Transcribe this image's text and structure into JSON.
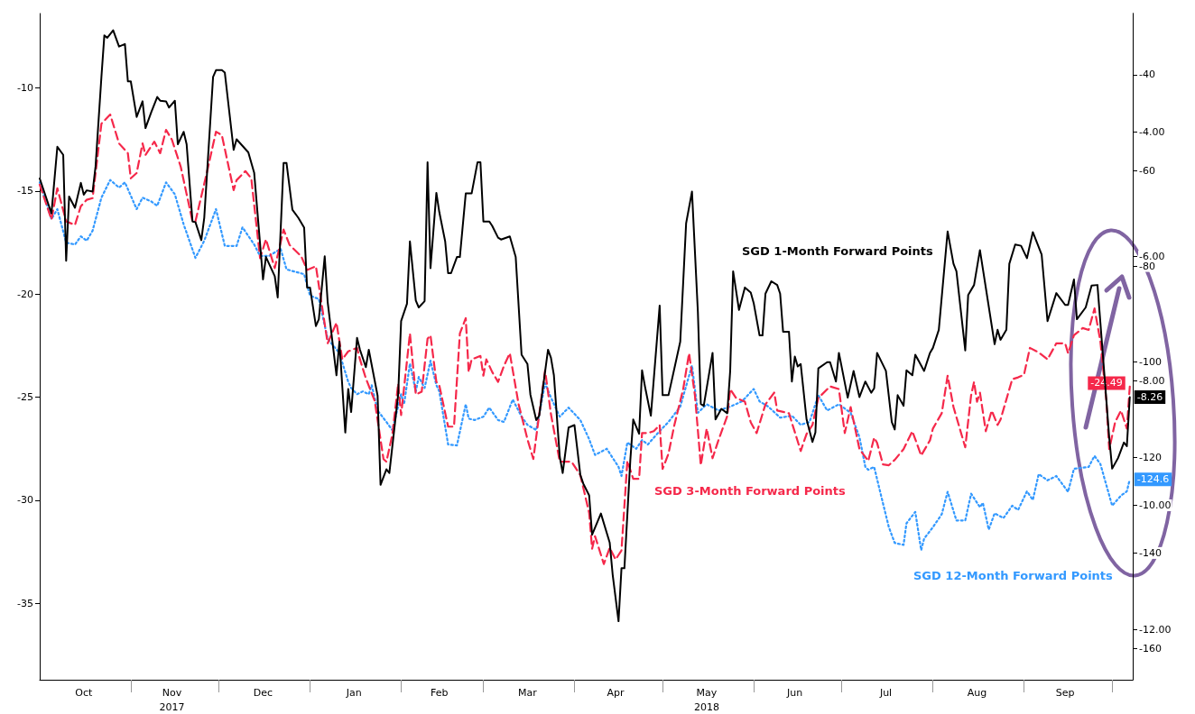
{
  "chart_data": {
    "type": "line",
    "xlim": [
      "2017-10-01",
      "2018-10-08"
    ],
    "xticks": [
      {
        "value": "2017-10-16",
        "label": "Oct"
      },
      {
        "value": "2017-11-01",
        "label": null
      },
      {
        "value": "2017-11-15",
        "label": "Nov\n2017"
      },
      {
        "value": "2017-12-01",
        "label": null
      },
      {
        "value": "2017-12-16",
        "label": "Dec"
      },
      {
        "value": "2018-01-01",
        "label": null
      },
      {
        "value": "2018-01-16",
        "label": "Jan"
      },
      {
        "value": "2018-02-01",
        "label": null
      },
      {
        "value": "2018-02-14",
        "label": "Feb"
      },
      {
        "value": "2018-03-01",
        "label": null
      },
      {
        "value": "2018-03-16",
        "label": "Mar"
      },
      {
        "value": "2018-04-01",
        "label": null
      },
      {
        "value": "2018-04-15",
        "label": "Apr"
      },
      {
        "value": "2018-05-01",
        "label": null
      },
      {
        "value": "2018-05-16",
        "label": "May\n2018"
      },
      {
        "value": "2018-06-01",
        "label": null
      },
      {
        "value": "2018-06-15",
        "label": "Jun"
      },
      {
        "value": "2018-07-01",
        "label": null
      },
      {
        "value": "2018-07-16",
        "label": "Jul"
      },
      {
        "value": "2018-08-01",
        "label": null
      },
      {
        "value": "2018-08-16",
        "label": "Aug"
      },
      {
        "value": "2018-09-01",
        "label": null
      },
      {
        "value": "2018-09-15",
        "label": "Sep"
      },
      {
        "value": "2018-10-01",
        "label": null
      }
    ],
    "ylim": [
      -38.7,
      -6.4
    ],
    "yticks": [
      -10,
      -15,
      -20,
      -25,
      -30,
      -35
    ],
    "y2lim": [
      -12.8,
      -2.1
    ],
    "y2ticks": [
      {
        "value": -4,
        "label": "-4.00"
      },
      {
        "value": -6,
        "label": "-6.00"
      },
      {
        "value": -8,
        "label": "-8.00"
      },
      {
        "value": -10,
        "label": "-10.00"
      },
      {
        "value": -12,
        "label": "-12.00"
      }
    ],
    "y3lim": [
      -166.5,
      -27.2
    ],
    "y3ticks": [
      -40,
      -60,
      -80,
      -100,
      -120,
      -140,
      -160
    ],
    "grid": false,
    "legend": false,
    "marker": "none",
    "series": [
      {
        "name": "SGD 1-Month Forward Points",
        "color": "#000000",
        "axis": "y2",
        "line_style": "solid",
        "x": [
          "2017-10-01",
          "2017-10-05",
          "2017-10-07",
          "2017-10-09",
          "2017-10-10",
          "2017-10-11",
          "2017-10-13",
          "2017-10-15",
          "2017-10-16",
          "2017-10-17",
          "2017-10-19",
          "2017-10-20",
          "2017-10-22",
          "2017-10-23",
          "2017-10-24",
          "2017-10-26",
          "2017-10-28",
          "2017-10-30",
          "2017-10-31",
          "2017-11-01",
          "2017-11-03",
          "2017-11-05",
          "2017-11-06",
          "2017-11-08",
          "2017-11-10",
          "2017-11-11",
          "2017-11-13",
          "2017-11-14",
          "2017-11-16",
          "2017-11-17",
          "2017-11-19",
          "2017-11-20",
          "2017-11-22",
          "2017-11-23",
          "2017-11-25",
          "2017-11-26",
          "2017-11-29",
          "2017-11-30",
          "2017-12-02",
          "2017-12-03",
          "2017-12-06",
          "2017-12-07",
          "2017-12-11",
          "2017-12-13",
          "2017-12-16",
          "2017-12-17",
          "2017-12-20",
          "2017-12-21",
          "2017-12-23",
          "2017-12-24",
          "2017-12-26",
          "2017-12-28",
          "2017-12-30",
          "2017-12-31",
          "2018-01-01",
          "2018-01-03",
          "2018-01-04",
          "2018-01-06",
          "2018-01-07",
          "2018-01-10",
          "2018-01-11",
          "2018-01-13",
          "2018-01-14",
          "2018-01-15",
          "2018-01-17",
          "2018-01-18",
          "2018-01-20",
          "2018-01-21",
          "2018-01-24",
          "2018-01-25",
          "2018-01-27",
          "2018-01-28",
          "2018-01-31",
          "2018-02-01",
          "2018-02-03",
          "2018-02-04",
          "2018-02-06",
          "2018-02-07",
          "2018-02-09",
          "2018-02-10",
          "2018-02-11",
          "2018-02-13",
          "2018-02-14",
          "2018-02-16",
          "2018-02-17",
          "2018-02-18",
          "2018-02-20",
          "2018-02-21",
          "2018-02-23",
          "2018-02-25",
          "2018-02-27",
          "2018-02-28",
          "2018-03-01",
          "2018-03-03",
          "2018-03-04",
          "2018-03-06",
          "2018-03-07",
          "2018-03-10",
          "2018-03-12",
          "2018-03-14",
          "2018-03-16",
          "2018-03-17",
          "2018-03-19",
          "2018-03-20",
          "2018-03-23",
          "2018-03-24",
          "2018-03-25",
          "2018-03-27",
          "2018-03-28",
          "2018-03-30",
          "2018-04-01",
          "2018-04-03",
          "2018-04-04",
          "2018-04-06",
          "2018-04-07",
          "2018-04-10",
          "2018-04-13",
          "2018-04-14",
          "2018-04-16",
          "2018-04-17",
          "2018-04-18",
          "2018-04-20",
          "2018-04-21",
          "2018-04-23",
          "2018-04-24",
          "2018-04-25",
          "2018-04-27",
          "2018-04-30",
          "2018-05-01",
          "2018-05-03",
          "2018-05-05",
          "2018-05-07",
          "2018-05-09",
          "2018-05-11",
          "2018-05-13",
          "2018-05-14",
          "2018-05-15",
          "2018-05-18",
          "2018-05-19",
          "2018-05-21",
          "2018-05-23",
          "2018-05-24",
          "2018-05-25",
          "2018-05-27",
          "2018-05-29",
          "2018-05-31",
          "2018-06-01",
          "2018-06-03",
          "2018-06-04",
          "2018-06-05",
          "2018-06-07",
          "2018-06-09",
          "2018-06-10",
          "2018-06-11",
          "2018-06-13",
          "2018-06-14",
          "2018-06-15",
          "2018-06-16",
          "2018-06-17",
          "2018-06-19",
          "2018-06-21",
          "2018-06-22",
          "2018-06-23",
          "2018-06-26",
          "2018-06-27",
          "2018-06-29",
          "2018-06-30",
          "2018-07-03",
          "2018-07-05",
          "2018-07-07",
          "2018-07-09",
          "2018-07-11",
          "2018-07-12",
          "2018-07-13",
          "2018-07-16",
          "2018-07-18",
          "2018-07-19",
          "2018-07-20",
          "2018-07-22",
          "2018-07-23",
          "2018-07-25",
          "2018-07-26",
          "2018-07-29",
          "2018-07-31",
          "2018-08-01",
          "2018-08-03",
          "2018-08-06",
          "2018-08-08",
          "2018-08-09",
          "2018-08-12",
          "2018-08-13",
          "2018-08-15",
          "2018-08-17",
          "2018-08-22",
          "2018-08-23",
          "2018-08-24",
          "2018-08-26",
          "2018-08-27",
          "2018-08-29",
          "2018-08-31",
          "2018-09-02",
          "2018-09-04",
          "2018-09-07",
          "2018-09-09",
          "2018-09-12",
          "2018-09-15",
          "2018-09-16",
          "2018-09-18",
          "2018-09-19",
          "2018-09-22",
          "2018-09-24",
          "2018-09-26",
          "2018-09-28",
          "2018-09-30",
          "2018-10-01",
          "2018-10-03",
          "2018-10-05",
          "2018-10-06",
          "2018-10-07"
        ],
        "values": [
          -4.75,
          -5.31,
          -4.24,
          -4.37,
          -6.07,
          -5.04,
          -5.22,
          -4.82,
          -5.01,
          -4.94,
          -4.96,
          -4.56,
          -3.12,
          -2.45,
          -2.49,
          -2.37,
          -2.63,
          -2.59,
          -3.19,
          -3.19,
          -3.76,
          -3.51,
          -3.94,
          -3.68,
          -3.44,
          -3.5,
          -3.51,
          -3.61,
          -3.5,
          -4.2,
          -4.0,
          -4.2,
          -5.44,
          -5.45,
          -5.74,
          -5.38,
          -3.12,
          -3.01,
          -3.01,
          -3.05,
          -4.29,
          -4.12,
          -4.33,
          -4.66,
          -6.37,
          -6.01,
          -6.32,
          -6.66,
          -4.5,
          -4.5,
          -5.25,
          -5.38,
          -5.54,
          -6.5,
          -6.5,
          -7.12,
          -7.01,
          -6.0,
          -6.73,
          -7.91,
          -7.37,
          -8.83,
          -8.13,
          -8.5,
          -7.31,
          -7.5,
          -7.78,
          -7.5,
          -8.24,
          -9.67,
          -9.42,
          -9.48,
          -8.22,
          -7.04,
          -6.76,
          -5.76,
          -6.71,
          -6.82,
          -6.72,
          -4.49,
          -6.19,
          -4.98,
          -5.29,
          -5.76,
          -6.27,
          -6.27,
          -6.01,
          -6.01,
          -4.99,
          -4.99,
          -4.49,
          -4.49,
          -5.44,
          -5.44,
          -5.51,
          -5.7,
          -5.73,
          -5.68,
          -6.01,
          -7.58,
          -7.73,
          -8.22,
          -8.63,
          -8.56,
          -7.5,
          -7.63,
          -7.91,
          -9.22,
          -9.48,
          -8.75,
          -8.71,
          -9.51,
          -9.65,
          -9.84,
          -10.47,
          -10.13,
          -10.6,
          -11.11,
          -11.86,
          -11.01,
          -11.01,
          -9.28,
          -8.62,
          -8.85,
          -7.83,
          -8.09,
          -8.56,
          -6.79,
          -8.23,
          -8.23,
          -7.8,
          -7.37,
          -5.47,
          -4.96,
          -6.89,
          -8.37,
          -8.4,
          -7.55,
          -8.62,
          -8.45,
          -8.52,
          -7.84,
          -6.24,
          -6.86,
          -6.5,
          -6.58,
          -6.75,
          -7.27,
          -7.27,
          -6.6,
          -6.4,
          -6.46,
          -6.6,
          -7.21,
          -7.21,
          -8.01,
          -7.61,
          -7.77,
          -7.73,
          -8.62,
          -8.98,
          -8.83,
          -7.8,
          -7.7,
          -7.7,
          -8.01,
          -7.55,
          -8.27,
          -7.84,
          -8.26,
          -8.01,
          -8.19,
          -8.12,
          -7.55,
          -7.84,
          -8.66,
          -8.78,
          -8.23,
          -8.4,
          -7.83,
          -7.91,
          -7.58,
          -7.84,
          -7.55,
          -7.47,
          -7.18,
          -5.6,
          -6.12,
          -6.24,
          -7.51,
          -6.62,
          -6.46,
          -5.9,
          -7.41,
          -7.18,
          -7.34,
          -7.18,
          -6.12,
          -5.81,
          -5.83,
          -6.03,
          -5.61,
          -5.97,
          -7.04,
          -6.59,
          -6.78,
          -6.78,
          -6.37,
          -7.01,
          -6.82,
          -6.47,
          -6.46,
          -7.68,
          -8.91,
          -9.41,
          -9.24,
          -8.99,
          -9.05,
          -8.26
        ],
        "value_labels": [
          null,
          null,
          null,
          null,
          null,
          null,
          null,
          null,
          null,
          null,
          null,
          null,
          null,
          null,
          null,
          null,
          null,
          null,
          null,
          null,
          null,
          null,
          null,
          null,
          null,
          null,
          null,
          null,
          null,
          null,
          null,
          null,
          null,
          null,
          null,
          null,
          null,
          null,
          null,
          null,
          null,
          null,
          null,
          null,
          null,
          null,
          null,
          null,
          null,
          null,
          null,
          null,
          null,
          null,
          null,
          null,
          null,
          null,
          null,
          null,
          null,
          null,
          null,
          null,
          null,
          null,
          null,
          null,
          null,
          null,
          null,
          null,
          null,
          null,
          null,
          null,
          null,
          null,
          null,
          null,
          null,
          null,
          null,
          null,
          null,
          null,
          null,
          null,
          null,
          null,
          null,
          null,
          null,
          null,
          null,
          null,
          null,
          null,
          null,
          null,
          null,
          null,
          null,
          null,
          null,
          null,
          null,
          null,
          null,
          null,
          null,
          null,
          null,
          null,
          null,
          null,
          null,
          null,
          null,
          null,
          null,
          null,
          null,
          null,
          null,
          null,
          null,
          null,
          null,
          null,
          null,
          null,
          null,
          null,
          null,
          null,
          null,
          null,
          null,
          null,
          null,
          null,
          null,
          null,
          null,
          null,
          null,
          null,
          null,
          null,
          null,
          null,
          null,
          null,
          null,
          null,
          null,
          null,
          null,
          null,
          null,
          null,
          null,
          null,
          null,
          null,
          null,
          null,
          null,
          null,
          null,
          null,
          null,
          null,
          null,
          null,
          null,
          null,
          null,
          null,
          null,
          null,
          null,
          null,
          null,
          null,
          null,
          null,
          null,
          null,
          null,
          null,
          null,
          null,
          null,
          null,
          null,
          null,
          null,
          null,
          null,
          null,
          null,
          null,
          null,
          null,
          null,
          null,
          null,
          null,
          null,
          null,
          null,
          null,
          null,
          null,
          null,
          null,
          "-8.26"
        ]
      },
      {
        "name": "SGD 3-Month Forward Points",
        "color": "#f5284a",
        "axis": "y",
        "line_style": "dashed",
        "x": [
          "2017-10-01",
          "2017-10-05",
          "2017-10-07",
          "2017-10-10",
          "2017-10-13",
          "2017-10-15",
          "2017-10-17",
          "2017-10-19",
          "2017-10-22",
          "2017-10-25",
          "2017-10-28",
          "2017-10-31",
          "2017-11-01",
          "2017-11-03",
          "2017-11-05",
          "2017-11-06",
          "2017-11-09",
          "2017-11-11",
          "2017-11-13",
          "2017-11-15",
          "2017-11-18",
          "2017-11-22",
          "2017-11-23",
          "2017-11-27",
          "2017-11-30",
          "2017-12-02",
          "2017-12-06",
          "2017-12-07",
          "2017-12-10",
          "2017-12-12",
          "2017-12-15",
          "2017-12-17",
          "2017-12-20",
          "2017-12-23",
          "2017-12-25",
          "2017-12-29",
          "2017-12-31",
          "2018-01-03",
          "2018-01-07",
          "2018-01-10",
          "2018-01-12",
          "2018-01-14",
          "2018-01-17",
          "2018-01-18",
          "2018-01-20",
          "2018-01-23",
          "2018-01-26",
          "2018-01-27",
          "2018-01-29",
          "2018-01-31",
          "2018-02-01",
          "2018-02-04",
          "2018-02-06",
          "2018-02-08",
          "2018-02-10",
          "2018-02-11",
          "2018-02-13",
          "2018-02-14",
          "2018-02-17",
          "2018-02-19",
          "2018-02-21",
          "2018-02-23",
          "2018-02-24",
          "2018-02-25",
          "2018-02-28",
          "2018-03-01",
          "2018-03-02",
          "2018-03-04",
          "2018-03-06",
          "2018-03-08",
          "2018-03-10",
          "2018-03-13",
          "2018-03-16",
          "2018-03-18",
          "2018-03-20",
          "2018-03-22",
          "2018-03-24",
          "2018-03-27",
          "2018-03-31",
          "2018-04-03",
          "2018-04-06",
          "2018-04-07",
          "2018-04-08",
          "2018-04-11",
          "2018-04-13",
          "2018-04-15",
          "2018-04-17",
          "2018-04-19",
          "2018-04-21",
          "2018-04-23",
          "2018-04-24",
          "2018-04-26",
          "2018-04-28",
          "2018-04-30",
          "2018-05-01",
          "2018-05-03",
          "2018-05-05",
          "2018-05-08",
          "2018-05-10",
          "2018-05-12",
          "2018-05-14",
          "2018-05-16",
          "2018-05-18",
          "2018-05-20",
          "2018-05-23",
          "2018-05-24",
          "2018-05-26",
          "2018-05-29",
          "2018-05-31",
          "2018-06-02",
          "2018-06-05",
          "2018-06-08",
          "2018-06-09",
          "2018-06-13",
          "2018-06-17",
          "2018-06-19",
          "2018-06-21",
          "2018-06-23",
          "2018-06-27",
          "2018-06-30",
          "2018-07-02",
          "2018-07-04",
          "2018-07-07",
          "2018-07-10",
          "2018-07-12",
          "2018-07-13",
          "2018-07-15",
          "2018-07-17",
          "2018-07-19",
          "2018-07-22",
          "2018-07-25",
          "2018-07-28",
          "2018-07-31",
          "2018-08-01",
          "2018-08-04",
          "2018-08-06",
          "2018-08-08",
          "2018-08-12",
          "2018-08-14",
          "2018-08-15",
          "2018-08-16",
          "2018-08-17",
          "2018-08-19",
          "2018-08-21",
          "2018-08-23",
          "2018-08-24",
          "2018-08-28",
          "2018-08-30",
          "2018-09-01",
          "2018-09-03",
          "2018-09-06",
          "2018-09-09",
          "2018-09-12",
          "2018-09-15",
          "2018-09-16",
          "2018-09-18",
          "2018-09-21",
          "2018-09-23",
          "2018-09-25",
          "2018-09-27",
          "2018-09-29",
          "2018-09-30",
          "2018-10-02",
          "2018-10-04",
          "2018-10-06",
          "2018-10-07"
        ],
        "values": [
          -14.7,
          -16.39,
          -14.87,
          -16.48,
          -16.65,
          -15.74,
          -15.43,
          -15.35,
          -11.74,
          -11.3,
          -12.7,
          -13.17,
          -14.39,
          -14.13,
          -12.7,
          -13.26,
          -12.61,
          -13.17,
          -12.04,
          -12.52,
          -13.83,
          -16.48,
          -16.48,
          -14.04,
          -12.13,
          -12.3,
          -14.96,
          -14.48,
          -14.04,
          -14.39,
          -18.26,
          -17.35,
          -18.74,
          -16.87,
          -17.61,
          -18.17,
          -18.83,
          -18.65,
          -22.39,
          -21.39,
          -23.17,
          -22.78,
          -22.61,
          -23.17,
          -24.09,
          -25.17,
          -28.0,
          -28.13,
          -26.83,
          -24.35,
          -25.87,
          -21.91,
          -24.87,
          -24.74,
          -22.17,
          -22.0,
          -24.26,
          -24.43,
          -26.43,
          -26.43,
          -21.91,
          -21.17,
          -23.78,
          -23.17,
          -23.0,
          -23.96,
          -23.17,
          -23.78,
          -24.26,
          -23.48,
          -22.87,
          -25.35,
          -27.04,
          -28.0,
          -25.83,
          -23.7,
          -25.83,
          -28.13,
          -28.13,
          -28.78,
          -30.61,
          -32.35,
          -31.74,
          -33.09,
          -32.3,
          -32.87,
          -32.43,
          -28.09,
          -28.96,
          -28.96,
          -26.74,
          -26.74,
          -26.65,
          -26.35,
          -28.48,
          -27.74,
          -26.35,
          -24.61,
          -22.87,
          -24.91,
          -28.3,
          -26.52,
          -27.96,
          -27.09,
          -25.91,
          -24.61,
          -25.04,
          -25.22,
          -26.22,
          -26.74,
          -25.35,
          -24.78,
          -25.65,
          -25.78,
          -27.61,
          -26.78,
          -26.35,
          -25.04,
          -24.48,
          -24.61,
          -26.74,
          -25.48,
          -27.52,
          -28.09,
          -26.96,
          -27.22,
          -28.26,
          -28.3,
          -28.04,
          -27.52,
          -26.65,
          -27.83,
          -27.09,
          -26.52,
          -25.78,
          -23.96,
          -25.48,
          -27.43,
          -24.91,
          -24.26,
          -25.22,
          -24.78,
          -26.65,
          -25.65,
          -26.35,
          -26.09,
          -24.13,
          -24.04,
          -23.91,
          -22.61,
          -22.83,
          -23.17,
          -22.39,
          -22.39,
          -22.87,
          -22.0,
          -21.65,
          -21.74,
          -20.7,
          -22.3,
          -25.13,
          -27.52,
          -26.22,
          -25.65,
          -26.52,
          -24.49
        ],
        "value_labels": [
          null,
          null,
          null,
          null,
          null,
          null,
          null,
          null,
          null,
          null,
          null,
          null,
          null,
          null,
          null,
          null,
          null,
          null,
          null,
          null,
          null,
          null,
          null,
          null,
          null,
          null,
          null,
          null,
          null,
          null,
          null,
          null,
          null,
          null,
          null,
          null,
          null,
          null,
          null,
          null,
          null,
          null,
          null,
          null,
          null,
          null,
          null,
          null,
          null,
          null,
          null,
          null,
          null,
          null,
          null,
          null,
          null,
          null,
          null,
          null,
          null,
          null,
          null,
          null,
          null,
          null,
          null,
          null,
          null,
          null,
          null,
          null,
          null,
          null,
          null,
          null,
          null,
          null,
          null,
          null,
          null,
          null,
          null,
          null,
          null,
          null,
          null,
          null,
          null,
          null,
          null,
          null,
          null,
          null,
          null,
          null,
          null,
          null,
          null,
          null,
          null,
          null,
          null,
          null,
          null,
          null,
          null,
          null,
          null,
          null,
          null,
          null,
          null,
          null,
          null,
          null,
          null,
          null,
          null,
          null,
          null,
          null,
          null,
          null,
          null,
          null,
          null,
          null,
          null,
          null,
          null,
          null,
          null,
          null,
          null,
          null,
          null,
          null,
          null,
          null,
          null,
          null,
          null,
          null,
          null,
          null,
          null,
          null,
          null,
          null,
          null,
          null,
          null,
          null,
          null,
          null,
          null,
          null,
          null,
          null,
          null,
          null,
          null,
          null,
          null,
          "-24.49"
        ]
      },
      {
        "name": "SGD 12-Month Forward Points",
        "color": "#3399ff",
        "axis": "y3",
        "line_style": "dotted",
        "x": [
          "2017-10-01",
          "2017-10-05",
          "2017-10-07",
          "2017-10-10",
          "2017-10-13",
          "2017-10-15",
          "2017-10-17",
          "2017-10-19",
          "2017-10-22",
          "2017-10-25",
          "2017-10-28",
          "2017-10-30",
          "2017-11-03",
          "2017-11-05",
          "2017-11-08",
          "2017-11-10",
          "2017-11-13",
          "2017-11-16",
          "2017-11-19",
          "2017-11-23",
          "2017-11-26",
          "2017-11-30",
          "2017-12-03",
          "2017-12-07",
          "2017-12-09",
          "2017-12-13",
          "2017-12-15",
          "2017-12-18",
          "2017-12-22",
          "2017-12-24",
          "2017-12-30",
          "2018-01-01",
          "2018-01-04",
          "2018-01-07",
          "2018-01-11",
          "2018-01-14",
          "2018-01-15",
          "2018-01-17",
          "2018-01-19",
          "2018-01-21",
          "2018-01-22",
          "2018-01-24",
          "2018-01-27",
          "2018-01-29",
          "2018-02-01",
          "2018-02-02",
          "2018-02-04",
          "2018-02-06",
          "2018-02-07",
          "2018-02-09",
          "2018-02-11",
          "2018-02-13",
          "2018-02-14",
          "2018-02-17",
          "2018-02-20",
          "2018-02-23",
          "2018-02-24",
          "2018-02-26",
          "2018-03-01",
          "2018-03-03",
          "2018-03-06",
          "2018-03-08",
          "2018-03-11",
          "2018-03-14",
          "2018-03-16",
          "2018-03-19",
          "2018-03-22",
          "2018-03-24",
          "2018-03-27",
          "2018-03-30",
          "2018-04-03",
          "2018-04-06",
          "2018-04-08",
          "2018-04-12",
          "2018-04-16",
          "2018-04-17",
          "2018-04-19",
          "2018-04-22",
          "2018-04-24",
          "2018-04-26",
          "2018-04-30",
          "2018-05-03",
          "2018-05-07",
          "2018-05-11",
          "2018-05-13",
          "2018-05-16",
          "2018-05-20",
          "2018-05-24",
          "2018-05-28",
          "2018-06-01",
          "2018-06-03",
          "2018-06-06",
          "2018-06-10",
          "2018-06-14",
          "2018-06-17",
          "2018-06-20",
          "2018-06-23",
          "2018-06-26",
          "2018-06-30",
          "2018-07-04",
          "2018-07-07",
          "2018-07-09",
          "2018-07-10",
          "2018-07-12",
          "2018-07-14",
          "2018-07-17",
          "2018-07-19",
          "2018-07-22",
          "2018-07-23",
          "2018-07-26",
          "2018-07-28",
          "2018-07-29",
          "2018-08-01",
          "2018-08-04",
          "2018-08-06",
          "2018-08-09",
          "2018-08-12",
          "2018-08-14",
          "2018-08-17",
          "2018-08-18",
          "2018-08-20",
          "2018-08-22",
          "2018-08-25",
          "2018-08-28",
          "2018-08-30",
          "2018-09-02",
          "2018-09-04",
          "2018-09-06",
          "2018-09-09",
          "2018-09-12",
          "2018-09-16",
          "2018-09-18",
          "2018-09-23",
          "2018-09-25",
          "2018-09-27",
          "2018-10-01",
          "2018-10-04",
          "2018-10-06",
          "2018-10-07"
        ],
        "values": [
          -62.5,
          -70.2,
          -68.1,
          -75.1,
          -75.5,
          -73.8,
          -74.7,
          -72.6,
          -65.7,
          -62.0,
          -63.6,
          -62.5,
          -68.1,
          -65.7,
          -66.5,
          -67.4,
          -62.5,
          -65.0,
          -71.3,
          -78.3,
          -74.7,
          -68.1,
          -75.8,
          -75.8,
          -71.9,
          -75.5,
          -77.9,
          -77.9,
          -76.4,
          -80.7,
          -81.7,
          -86.2,
          -86.9,
          -95.2,
          -98.2,
          -104.2,
          -105.5,
          -106.8,
          -106.2,
          -106.8,
          -104.9,
          -110.2,
          -112.6,
          -114.3,
          -106.8,
          -108.9,
          -100.4,
          -106.2,
          -103.2,
          -105.5,
          -99.8,
          -104.9,
          -106.2,
          -117.3,
          -117.5,
          -108.9,
          -111.9,
          -112.2,
          -111.5,
          -109.6,
          -112.2,
          -112.6,
          -107.9,
          -111.5,
          -113.2,
          -114.3,
          -104.5,
          -107.5,
          -111.5,
          -109.6,
          -112.2,
          -116.2,
          -119.5,
          -118.2,
          -122.0,
          -123.9,
          -116.9,
          -118.2,
          -116.4,
          -117.3,
          -114.5,
          -112.6,
          -109.4,
          -100.8,
          -110.7,
          -108.9,
          -110.2,
          -109.4,
          -108.3,
          -105.7,
          -108.3,
          -109.4,
          -111.7,
          -111.3,
          -113.2,
          -112.6,
          -107.0,
          -110.2,
          -108.9,
          -110.7,
          -115.8,
          -122.0,
          -122.6,
          -122.0,
          -127.1,
          -134.6,
          -137.9,
          -138.3,
          -133.8,
          -131.4,
          -139.4,
          -137.0,
          -134.6,
          -131.9,
          -127.2,
          -133.2,
          -133.2,
          -127.6,
          -130.4,
          -129.5,
          -135.1,
          -131.7,
          -132.7,
          -130.1,
          -131.0,
          -127.1,
          -128.9,
          -123.5,
          -124.8,
          -123.9,
          -127.2,
          -122.4,
          -122.0,
          -119.7,
          -121.4,
          -130.1,
          -128.0,
          -127.1,
          -124.6
        ],
        "value_labels": [
          null,
          null,
          null,
          null,
          null,
          null,
          null,
          null,
          null,
          null,
          null,
          null,
          null,
          null,
          null,
          null,
          null,
          null,
          null,
          null,
          null,
          null,
          null,
          null,
          null,
          null,
          null,
          null,
          null,
          null,
          null,
          null,
          null,
          null,
          null,
          null,
          null,
          null,
          null,
          null,
          null,
          null,
          null,
          null,
          null,
          null,
          null,
          null,
          null,
          null,
          null,
          null,
          null,
          null,
          null,
          null,
          null,
          null,
          null,
          null,
          null,
          null,
          null,
          null,
          null,
          null,
          null,
          null,
          null,
          null,
          null,
          null,
          null,
          null,
          null,
          null,
          null,
          null,
          null,
          null,
          null,
          null,
          null,
          null,
          null,
          null,
          null,
          null,
          null,
          null,
          null,
          null,
          null,
          null,
          null,
          null,
          null,
          null,
          null,
          null,
          null,
          null,
          null,
          null,
          null,
          null,
          null,
          null,
          null,
          null,
          null,
          null,
          null,
          null,
          null,
          null,
          null,
          null,
          null,
          null,
          null,
          null,
          null,
          null,
          null,
          null,
          null,
          null,
          null,
          null,
          null,
          null,
          null,
          null,
          null,
          null,
          null,
          null,
          "-124.6"
        ]
      }
    ]
  }
}
